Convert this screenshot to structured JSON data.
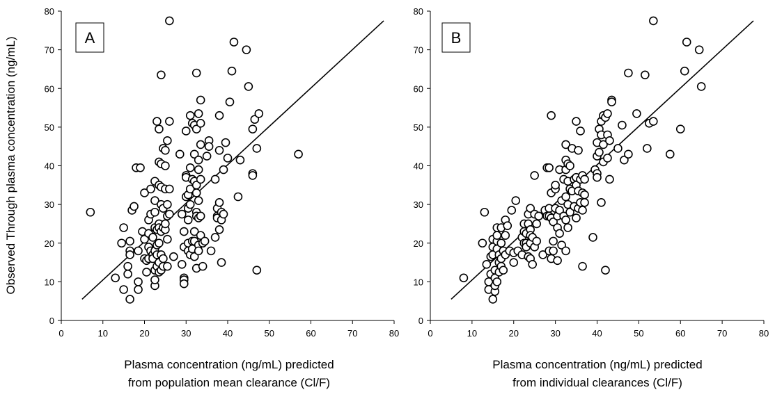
{
  "colors": {
    "axis": "#000000",
    "marker_stroke": "#000000",
    "marker_fill": "#ffffff",
    "background": "#ffffff"
  },
  "y_axis_title": "Observed Through plasma concentration (ng/mL)",
  "chart_data": [
    {
      "type": "scatter",
      "panel_label": "A",
      "xlabel_lines": [
        "Plasma concentration (ng/mL) predicted",
        "from population mean clearance (Cl/F)"
      ],
      "ylabel": "Observed Through plasma concentration (ng/mL)",
      "xlim": [
        0,
        80
      ],
      "ylim": [
        0,
        80
      ],
      "xticks": [
        "0",
        "10",
        "20",
        "30",
        "40",
        "50",
        "60",
        "70",
        "80"
      ],
      "yticks": [
        "0",
        "10",
        "20",
        "30",
        "40",
        "50",
        "60",
        "70",
        "80"
      ],
      "grid": false,
      "identity_line": {
        "from": [
          5,
          5.5
        ],
        "to": [
          77.5,
          77.5
        ]
      },
      "points": [
        [
          7,
          28
        ],
        [
          13,
          11
        ],
        [
          14.5,
          20
        ],
        [
          15,
          24
        ],
        [
          15,
          8
        ],
        [
          16,
          12
        ],
        [
          16,
          14
        ],
        [
          16.5,
          5.5
        ],
        [
          16.5,
          18
        ],
        [
          16.5,
          20.5
        ],
        [
          16.5,
          17
        ],
        [
          17,
          28.5
        ],
        [
          17.5,
          29.5
        ],
        [
          18,
          39.5
        ],
        [
          18.5,
          8
        ],
        [
          18.5,
          10
        ],
        [
          18.5,
          18
        ],
        [
          19,
          39.5
        ],
        [
          19.5,
          23
        ],
        [
          20,
          16
        ],
        [
          20,
          33
        ],
        [
          20,
          21
        ],
        [
          20.5,
          12.5
        ],
        [
          20.5,
          15.5
        ],
        [
          21,
          19
        ],
        [
          21,
          22.5
        ],
        [
          21,
          26
        ],
        [
          21,
          16
        ],
        [
          21.5,
          18
        ],
        [
          21.5,
          27.5
        ],
        [
          21.5,
          34
        ],
        [
          22,
          21.5
        ],
        [
          22,
          17
        ],
        [
          22,
          16
        ],
        [
          22.5,
          24
        ],
        [
          22.5,
          13
        ],
        [
          22.5,
          9
        ],
        [
          22.5,
          10.5
        ],
        [
          22.5,
          36
        ],
        [
          22.5,
          28
        ],
        [
          22.5,
          31
        ],
        [
          22.5,
          18
        ],
        [
          23,
          14
        ],
        [
          23,
          17
        ],
        [
          23,
          19.5
        ],
        [
          23,
          51.5
        ],
        [
          23,
          23.5
        ],
        [
          23.5,
          49.5
        ],
        [
          23.5,
          41
        ],
        [
          23.5,
          35
        ],
        [
          23.5,
          25
        ],
        [
          23.5,
          20
        ],
        [
          23.5,
          24
        ],
        [
          23.5,
          15
        ],
        [
          23.5,
          12.5
        ],
        [
          24,
          63.5
        ],
        [
          24,
          40.5
        ],
        [
          24,
          34.5
        ],
        [
          24,
          30
        ],
        [
          24,
          23
        ],
        [
          24,
          17
        ],
        [
          24,
          13
        ],
        [
          24.5,
          44.5
        ],
        [
          24.5,
          29
        ],
        [
          24.5,
          24
        ],
        [
          24.5,
          16
        ],
        [
          24.5,
          14
        ],
        [
          25,
          44
        ],
        [
          25,
          40
        ],
        [
          25,
          34
        ],
        [
          25,
          23.5
        ],
        [
          25,
          25
        ],
        [
          25.5,
          46.5
        ],
        [
          25.5,
          27
        ],
        [
          25.5,
          30
        ],
        [
          25.5,
          21
        ],
        [
          25.5,
          14
        ],
        [
          26,
          77.5
        ],
        [
          26,
          51.5
        ],
        [
          26,
          34
        ],
        [
          26,
          27.5
        ],
        [
          27,
          16.5
        ],
        [
          28.5,
          43
        ],
        [
          29,
          14.5
        ],
        [
          29,
          27.5
        ],
        [
          29.5,
          23
        ],
        [
          29.5,
          19
        ],
        [
          29.5,
          11
        ],
        [
          29.5,
          10.5
        ],
        [
          29.5,
          9.5
        ],
        [
          30,
          49
        ],
        [
          30,
          37.5
        ],
        [
          30,
          37
        ],
        [
          30,
          32
        ],
        [
          30.5,
          32.5
        ],
        [
          30.5,
          29
        ],
        [
          30.5,
          26
        ],
        [
          30.5,
          20
        ],
        [
          30.5,
          18
        ],
        [
          31,
          53
        ],
        [
          31,
          39.5
        ],
        [
          31,
          34
        ],
        [
          31,
          30
        ],
        [
          31,
          17
        ],
        [
          31.5,
          51
        ],
        [
          31.5,
          36.5
        ],
        [
          31.5,
          18.5
        ],
        [
          31.5,
          20.5
        ],
        [
          32,
          50.5
        ],
        [
          32,
          43
        ],
        [
          32,
          36
        ],
        [
          32,
          23
        ],
        [
          32,
          20.5
        ],
        [
          32,
          16.5
        ],
        [
          32.5,
          64
        ],
        [
          32.5,
          49.5
        ],
        [
          32.5,
          35
        ],
        [
          32.5,
          33
        ],
        [
          32.5,
          28
        ],
        [
          32.5,
          27
        ],
        [
          32.5,
          13.5
        ],
        [
          33,
          53.5
        ],
        [
          33,
          41.5
        ],
        [
          33,
          39
        ],
        [
          33,
          31
        ],
        [
          33,
          26.5
        ],
        [
          33,
          19.5
        ],
        [
          33,
          18
        ],
        [
          33.5,
          57
        ],
        [
          33.5,
          51
        ],
        [
          33.5,
          45.5
        ],
        [
          33.5,
          36.5
        ],
        [
          33.5,
          27
        ],
        [
          33.5,
          22
        ],
        [
          34,
          20
        ],
        [
          34,
          14
        ],
        [
          34.5,
          20.5
        ],
        [
          35,
          42.5
        ],
        [
          35.5,
          46.5
        ],
        [
          35.5,
          45
        ],
        [
          36,
          18
        ],
        [
          37,
          21.5
        ],
        [
          37,
          36.5
        ],
        [
          37.5,
          27
        ],
        [
          37.5,
          29
        ],
        [
          37.5,
          26.5
        ],
        [
          38,
          44
        ],
        [
          38,
          53
        ],
        [
          38,
          30.5
        ],
        [
          38,
          23.5
        ],
        [
          38.5,
          15
        ],
        [
          38.5,
          28
        ],
        [
          38.5,
          26
        ],
        [
          39,
          39
        ],
        [
          39,
          27.5
        ],
        [
          39.5,
          46
        ],
        [
          40,
          42
        ],
        [
          40.5,
          56.5
        ],
        [
          41,
          64.5
        ],
        [
          41.5,
          72
        ],
        [
          42.5,
          32
        ],
        [
          43,
          41.5
        ],
        [
          44.5,
          70
        ],
        [
          45,
          60.5
        ],
        [
          46,
          49.5
        ],
        [
          46,
          38
        ],
        [
          46,
          37.5
        ],
        [
          46.5,
          52
        ],
        [
          47,
          44.5
        ],
        [
          47,
          13
        ],
        [
          47.5,
          53.5
        ],
        [
          57,
          43
        ]
      ]
    },
    {
      "type": "scatter",
      "panel_label": "B",
      "xlabel_lines": [
        "Plasma concentration (ng/mL) predicted",
        "from individual clearances (Cl/F)"
      ],
      "ylabel": "",
      "xlim": [
        0,
        80
      ],
      "ylim": [
        0,
        80
      ],
      "xticks": [
        "0",
        "10",
        "20",
        "30",
        "40",
        "50",
        "60",
        "70",
        "80"
      ],
      "yticks": [
        "0",
        "10",
        "20",
        "30",
        "40",
        "50",
        "60",
        "70",
        "80"
      ],
      "grid": false,
      "identity_line": {
        "from": [
          5,
          5.5
        ],
        "to": [
          77.5,
          77.5
        ]
      },
      "points": [
        [
          8,
          11
        ],
        [
          12.5,
          20
        ],
        [
          13,
          28
        ],
        [
          13.5,
          14.5
        ],
        [
          14,
          8
        ],
        [
          14,
          10
        ],
        [
          14.5,
          12
        ],
        [
          14.5,
          16.5
        ],
        [
          15,
          5.5
        ],
        [
          15,
          17
        ],
        [
          15,
          19
        ],
        [
          15,
          21
        ],
        [
          15.5,
          7.5
        ],
        [
          15.5,
          9
        ],
        [
          15.5,
          11
        ],
        [
          15.5,
          13
        ],
        [
          16,
          18.5
        ],
        [
          16,
          20.5
        ],
        [
          16,
          22
        ],
        [
          16,
          24
        ],
        [
          16,
          10
        ],
        [
          16.5,
          12.5
        ],
        [
          16.5,
          15
        ],
        [
          16.5,
          17
        ],
        [
          17,
          24
        ],
        [
          17,
          14
        ],
        [
          17,
          16
        ],
        [
          17,
          20
        ],
        [
          17.5,
          13
        ],
        [
          17.5,
          18
        ],
        [
          18,
          22
        ],
        [
          18,
          26
        ],
        [
          18,
          17
        ],
        [
          18.5,
          24.5
        ],
        [
          19,
          18
        ],
        [
          19.5,
          28.5
        ],
        [
          20,
          17.5
        ],
        [
          20,
          15
        ],
        [
          20.5,
          31
        ],
        [
          21,
          18
        ],
        [
          22,
          21.5
        ],
        [
          22,
          17
        ],
        [
          22.5,
          23
        ],
        [
          22.5,
          25
        ],
        [
          22.5,
          20
        ],
        [
          23,
          22.5
        ],
        [
          23,
          20
        ],
        [
          23,
          19
        ],
        [
          23.5,
          27.5
        ],
        [
          23.5,
          25
        ],
        [
          23.5,
          16.5
        ],
        [
          24,
          29
        ],
        [
          24,
          23.5
        ],
        [
          24,
          22
        ],
        [
          24,
          20
        ],
        [
          24,
          16
        ],
        [
          24.5,
          14.5
        ],
        [
          24.5,
          21.5
        ],
        [
          25,
          37.5
        ],
        [
          25,
          19
        ],
        [
          25,
          27.5
        ],
        [
          25.5,
          25
        ],
        [
          25.5,
          20.5
        ],
        [
          26,
          27
        ],
        [
          27,
          17
        ],
        [
          27.5,
          28.5
        ],
        [
          28,
          39.5
        ],
        [
          28,
          27
        ],
        [
          28.5,
          39.5
        ],
        [
          28.5,
          29
        ],
        [
          28.5,
          27
        ],
        [
          28.5,
          18
        ],
        [
          29,
          53
        ],
        [
          29,
          33
        ],
        [
          29,
          26.5
        ],
        [
          29,
          16
        ],
        [
          29.5,
          25.5
        ],
        [
          29.5,
          20.5
        ],
        [
          29.5,
          18
        ],
        [
          30,
          34
        ],
        [
          30,
          29
        ],
        [
          30,
          35
        ],
        [
          30.5,
          27
        ],
        [
          30.5,
          24
        ],
        [
          30.5,
          15.5
        ],
        [
          31,
          39
        ],
        [
          31,
          28.5
        ],
        [
          31,
          22.5
        ],
        [
          31.5,
          31
        ],
        [
          31.5,
          19.5
        ],
        [
          32,
          36.5
        ],
        [
          32,
          27
        ],
        [
          32.5,
          45.5
        ],
        [
          32.5,
          41.5
        ],
        [
          32.5,
          39
        ],
        [
          32.5,
          32
        ],
        [
          32.5,
          26
        ],
        [
          32.5,
          18
        ],
        [
          33,
          40.5
        ],
        [
          33,
          36
        ],
        [
          33,
          30
        ],
        [
          33,
          24
        ],
        [
          33.5,
          40
        ],
        [
          33.5,
          34
        ],
        [
          33.5,
          28
        ],
        [
          34,
          44.5
        ],
        [
          34,
          33.5
        ],
        [
          34.5,
          36.5
        ],
        [
          34.5,
          29.5
        ],
        [
          35,
          51.5
        ],
        [
          35,
          37
        ],
        [
          35,
          35
        ],
        [
          35,
          26.5
        ],
        [
          35.5,
          44
        ],
        [
          35.5,
          33.5
        ],
        [
          35.5,
          29
        ],
        [
          36,
          49
        ],
        [
          36,
          36.5
        ],
        [
          36,
          30.5
        ],
        [
          36.5,
          37.5
        ],
        [
          36.5,
          33
        ],
        [
          36.5,
          28.5
        ],
        [
          36.5,
          14
        ],
        [
          37,
          36.5
        ],
        [
          37,
          32.5
        ],
        [
          37,
          30.5
        ],
        [
          39,
          21.5
        ],
        [
          39.5,
          39
        ],
        [
          40,
          46
        ],
        [
          40,
          42.5
        ],
        [
          40,
          38
        ],
        [
          40,
          37
        ],
        [
          40.5,
          49.5
        ],
        [
          40.5,
          43.5
        ],
        [
          41,
          51.5
        ],
        [
          41,
          48
        ],
        [
          41,
          30.5
        ],
        [
          41.5,
          53
        ],
        [
          41.5,
          45.5
        ],
        [
          41.5,
          41
        ],
        [
          42,
          52.5
        ],
        [
          42,
          13
        ],
        [
          42.5,
          53.5
        ],
        [
          42.5,
          48
        ],
        [
          42.5,
          42
        ],
        [
          43,
          36.5
        ],
        [
          43,
          46.5
        ],
        [
          43.5,
          57
        ],
        [
          43.5,
          56.5
        ],
        [
          45,
          44.5
        ],
        [
          46,
          50.5
        ],
        [
          46.5,
          41.5
        ],
        [
          47.5,
          64
        ],
        [
          47.5,
          43
        ],
        [
          49.5,
          53.5
        ],
        [
          51.5,
          63.5
        ],
        [
          52,
          44.5
        ],
        [
          52.5,
          51
        ],
        [
          53.5,
          77.5
        ],
        [
          53.5,
          51.5
        ],
        [
          57.5,
          43
        ],
        [
          60,
          49.5
        ],
        [
          61,
          64.5
        ],
        [
          61.5,
          72
        ],
        [
          64.5,
          70
        ],
        [
          65,
          60.5
        ]
      ]
    }
  ]
}
